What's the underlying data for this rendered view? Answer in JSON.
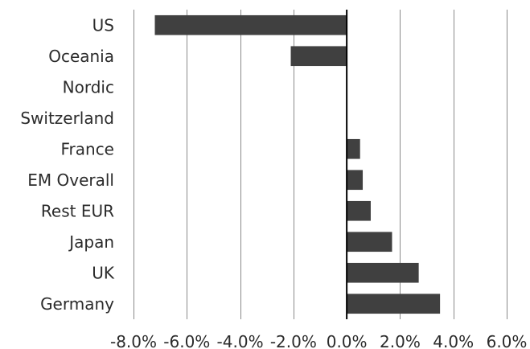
{
  "chart_data": {
    "type": "bar",
    "orientation": "horizontal",
    "categories": [
      "US",
      "Oceania",
      "Nordic",
      "Switzerland",
      "France",
      "EM Overall",
      "Rest EUR",
      "Japan",
      "UK",
      "Germany"
    ],
    "values": [
      -7.2,
      -2.1,
      0.0,
      0.0,
      0.5,
      0.6,
      0.9,
      1.7,
      2.7,
      3.5
    ],
    "xlim": [
      -8,
      6
    ],
    "xticks": [
      -8,
      -6,
      -4,
      -2,
      0,
      2,
      4,
      6
    ],
    "tick_labels": [
      "-8.0%",
      "-6.0%",
      "-4.0%",
      "-2.0%",
      "0.0%",
      "2.0%",
      "4.0%",
      "6.0%"
    ],
    "grid": true,
    "legend": "none",
    "bar_color": "#404040",
    "grid_color": "#8a8a8a",
    "axis_color": "#000000"
  }
}
